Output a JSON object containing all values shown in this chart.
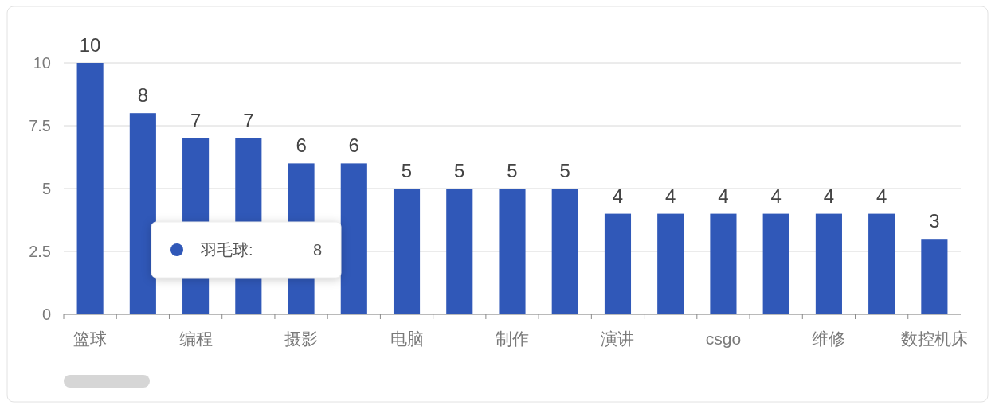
{
  "chart_data": {
    "type": "bar",
    "categories": [
      "篮球",
      null,
      "编程",
      null,
      "摄影",
      null,
      "电脑",
      null,
      "制作",
      null,
      "演讲",
      null,
      "csgo",
      null,
      "维修",
      null,
      "数控机床"
    ],
    "values": [
      10,
      8,
      7,
      7,
      6,
      6,
      5,
      5,
      5,
      5,
      4,
      4,
      4,
      4,
      4,
      4,
      3
    ],
    "color": "#3058b8",
    "ylim": [
      0,
      10
    ],
    "yticks": [
      0,
      2.5,
      5,
      7.5,
      10
    ],
    "grid": "y",
    "data_labels": true,
    "annotations": [
      "羽毛球:",
      "8"
    ]
  }
}
